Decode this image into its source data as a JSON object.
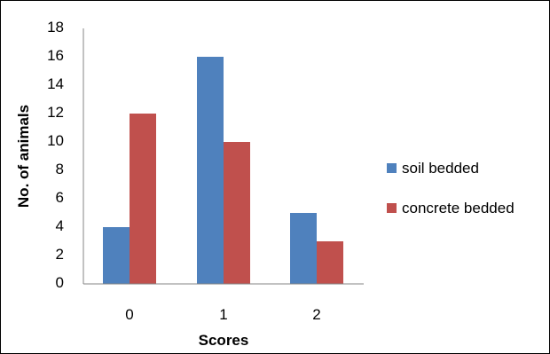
{
  "chart_data": {
    "type": "bar",
    "title": "",
    "xlabel": "Scores",
    "ylabel": "No. of animals",
    "categories": [
      "0",
      "1",
      "2"
    ],
    "series": [
      {
        "name": "soil bedded",
        "values": [
          4,
          16,
          5
        ],
        "color": "#4F81BD"
      },
      {
        "name": "concrete bedded",
        "values": [
          12,
          10,
          3
        ],
        "color": "#C0504D"
      }
    ],
    "ylim": [
      0,
      18
    ],
    "yticks": [
      "0",
      "2",
      "4",
      "6",
      "8",
      "10",
      "12",
      "14",
      "16",
      "18"
    ],
    "grid": false,
    "legend_position": "right"
  }
}
